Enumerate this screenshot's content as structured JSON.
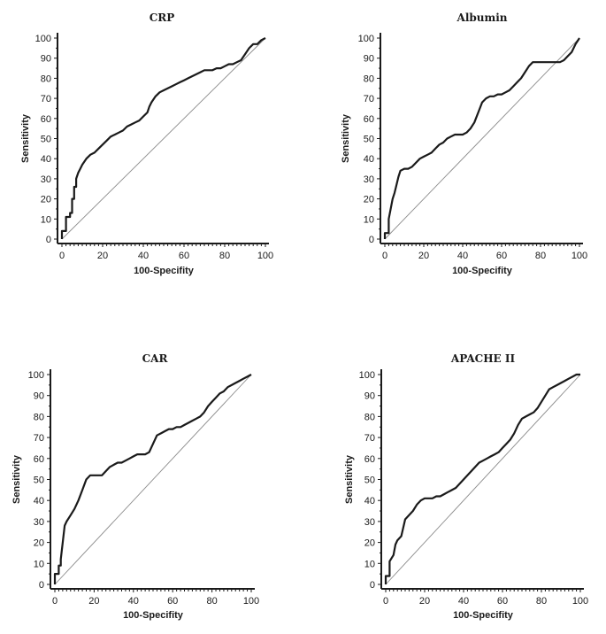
{
  "chart_data": [
    {
      "type": "line",
      "title": "CRP",
      "xlabel": "100-Specifity",
      "ylabel": "Sensitivity",
      "xlim": [
        0,
        100
      ],
      "ylim": [
        0,
        100
      ],
      "xticks": [
        "0",
        "20",
        "40",
        "60",
        "80",
        "100"
      ],
      "yticks": [
        "0",
        "10",
        "20",
        "30",
        "40",
        "50",
        "60",
        "70",
        "80",
        "90",
        "100"
      ],
      "grid": false,
      "reference_line": true,
      "series": [
        {
          "x": [
            0,
            0,
            2,
            2,
            4,
            4,
            5,
            5,
            6,
            6,
            7,
            7,
            8,
            9,
            10,
            12,
            14,
            16,
            18,
            20,
            22,
            24,
            26,
            28,
            30,
            32,
            34,
            36,
            38,
            40,
            42,
            43,
            44,
            46,
            48,
            50,
            52,
            54,
            56,
            58,
            60,
            62,
            64,
            66,
            68,
            70,
            72,
            74,
            76,
            78,
            80,
            82,
            84,
            86,
            88,
            90,
            92,
            94,
            96,
            98,
            100
          ],
          "y": [
            0,
            4,
            4,
            11,
            11,
            13,
            13,
            20,
            20,
            26,
            26,
            30,
            33,
            35,
            37,
            40,
            42,
            43,
            45,
            47,
            49,
            51,
            52,
            53,
            54,
            56,
            57,
            58,
            59,
            61,
            63,
            66,
            68,
            71,
            73,
            74,
            75,
            76,
            77,
            78,
            79,
            80,
            81,
            82,
            83,
            84,
            84,
            84,
            85,
            85,
            86,
            87,
            87,
            88,
            89,
            92,
            95,
            97,
            97,
            99,
            100
          ]
        }
      ]
    },
    {
      "type": "line",
      "title": "Albumin",
      "xlabel": "100-Specifity",
      "ylabel": "Sensitivity",
      "xlim": [
        0,
        100
      ],
      "ylim": [
        0,
        100
      ],
      "xticks": [
        "0",
        "20",
        "40",
        "60",
        "80",
        "100"
      ],
      "yticks": [
        "0",
        "10",
        "20",
        "30",
        "40",
        "50",
        "60",
        "70",
        "80",
        "90",
        "100"
      ],
      "grid": false,
      "reference_line": true,
      "series": [
        {
          "x": [
            0,
            0,
            2,
            2,
            3,
            4,
            5,
            6,
            7,
            8,
            10,
            12,
            14,
            16,
            18,
            20,
            22,
            24,
            26,
            28,
            30,
            32,
            34,
            36,
            38,
            40,
            42,
            44,
            46,
            48,
            50,
            52,
            54,
            56,
            58,
            60,
            62,
            64,
            66,
            68,
            70,
            72,
            74,
            76,
            78,
            80,
            82,
            84,
            86,
            88,
            90,
            92,
            94,
            96,
            98,
            100
          ],
          "y": [
            0,
            3,
            3,
            10,
            15,
            20,
            23,
            27,
            31,
            34,
            35,
            35,
            36,
            38,
            40,
            41,
            42,
            43,
            45,
            47,
            48,
            50,
            51,
            52,
            52,
            52,
            53,
            55,
            58,
            63,
            68,
            70,
            71,
            71,
            72,
            72,
            73,
            74,
            76,
            78,
            80,
            83,
            86,
            88,
            88,
            88,
            88,
            88,
            88,
            88,
            88,
            89,
            91,
            93,
            97,
            100
          ]
        }
      ]
    },
    {
      "type": "line",
      "title": "CAR",
      "xlabel": "100-Specifity",
      "ylabel": "Sensitivity",
      "xlim": [
        0,
        100
      ],
      "ylim": [
        0,
        100
      ],
      "xticks": [
        "0",
        "20",
        "40",
        "60",
        "80",
        "100"
      ],
      "yticks": [
        "0",
        "10",
        "20",
        "30",
        "40",
        "50",
        "60",
        "70",
        "80",
        "90",
        "100"
      ],
      "grid": false,
      "reference_line": true,
      "series": [
        {
          "x": [
            0,
            0,
            2,
            2,
            3,
            3,
            4,
            5,
            6,
            8,
            10,
            12,
            14,
            16,
            18,
            20,
            22,
            24,
            26,
            28,
            30,
            32,
            34,
            36,
            38,
            40,
            42,
            44,
            46,
            48,
            50,
            52,
            54,
            56,
            58,
            60,
            62,
            64,
            66,
            68,
            70,
            72,
            74,
            76,
            78,
            80,
            82,
            84,
            86,
            88,
            90,
            92,
            94,
            96,
            98,
            100
          ],
          "y": [
            0,
            5,
            5,
            9,
            9,
            12,
            20,
            28,
            30,
            33,
            36,
            40,
            45,
            50,
            52,
            52,
            52,
            52,
            54,
            56,
            57,
            58,
            58,
            59,
            60,
            61,
            62,
            62,
            62,
            63,
            67,
            71,
            72,
            73,
            74,
            74,
            75,
            75,
            76,
            77,
            78,
            79,
            80,
            82,
            85,
            87,
            89,
            91,
            92,
            94,
            95,
            96,
            97,
            98,
            99,
            100
          ]
        }
      ]
    },
    {
      "type": "line",
      "title": "APACHE II",
      "xlabel": "100-Specifity",
      "ylabel": "Sensitivity",
      "xlim": [
        0,
        100
      ],
      "ylim": [
        0,
        100
      ],
      "xticks": [
        "0",
        "20",
        "40",
        "60",
        "80",
        "100"
      ],
      "yticks": [
        "0",
        "10",
        "20",
        "30",
        "40",
        "50",
        "60",
        "70",
        "80",
        "90",
        "100"
      ],
      "grid": false,
      "reference_line": true,
      "series": [
        {
          "x": [
            0,
            0,
            2,
            2,
            4,
            5,
            6,
            8,
            9,
            10,
            12,
            14,
            16,
            18,
            20,
            22,
            24,
            26,
            28,
            30,
            32,
            34,
            36,
            38,
            40,
            42,
            44,
            46,
            48,
            50,
            52,
            54,
            56,
            58,
            60,
            62,
            64,
            66,
            68,
            70,
            72,
            74,
            76,
            78,
            80,
            82,
            84,
            86,
            88,
            90,
            92,
            94,
            96,
            98,
            100
          ],
          "y": [
            0,
            4,
            4,
            11,
            14,
            19,
            21,
            23,
            27,
            31,
            33,
            35,
            38,
            40,
            41,
            41,
            41,
            42,
            42,
            43,
            44,
            45,
            46,
            48,
            50,
            52,
            54,
            56,
            58,
            59,
            60,
            61,
            62,
            63,
            65,
            67,
            69,
            72,
            76,
            79,
            80,
            81,
            82,
            84,
            87,
            90,
            93,
            94,
            95,
            96,
            97,
            98,
            99,
            100,
            100
          ]
        }
      ]
    }
  ]
}
